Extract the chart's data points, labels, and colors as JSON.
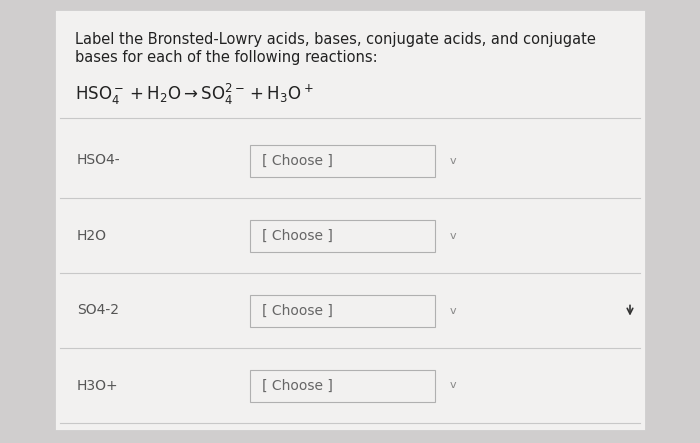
{
  "bg_color": "#d0cece",
  "panel_color": "#f2f1f0",
  "title_line1": "Label the Bronsted-Lowry acids, bases, conjugate acids, and conjugate",
  "title_line2": "bases for each of the following reactions:",
  "eq_part1": "HSO",
  "eq_part2": "4",
  "eq_part3": "⁻",
  "eq_part4": " + H",
  "eq_part5": "2",
  "eq_part6": "O → SO",
  "eq_part7": "4",
  "eq_part8": "2⁻",
  "eq_part9": " + H",
  "eq_part10": "3",
  "eq_part11": "O",
  "eq_part12": "⁺",
  "rows": [
    {
      "label": "HSO4-",
      "dropdown": "[ Choose ]"
    },
    {
      "label": "H2O",
      "dropdown": "[ Choose ]"
    },
    {
      "label": "SO4-2",
      "dropdown": "[ Choose ]"
    },
    {
      "label": "H3O+",
      "dropdown": "[ Choose ]"
    }
  ],
  "label_color": "#555555",
  "dropdown_bg": "#f2f1f0",
  "dropdown_border": "#b0b0b0",
  "dropdown_text_color": "#666666",
  "chevron_color": "#888888",
  "title_color": "#222222",
  "equation_color": "#222222",
  "separator_color": "#c8c8c8",
  "title_fontsize": 10.5,
  "eq_fontsize": 11,
  "label_fontsize": 10,
  "dropdown_fontsize": 10
}
